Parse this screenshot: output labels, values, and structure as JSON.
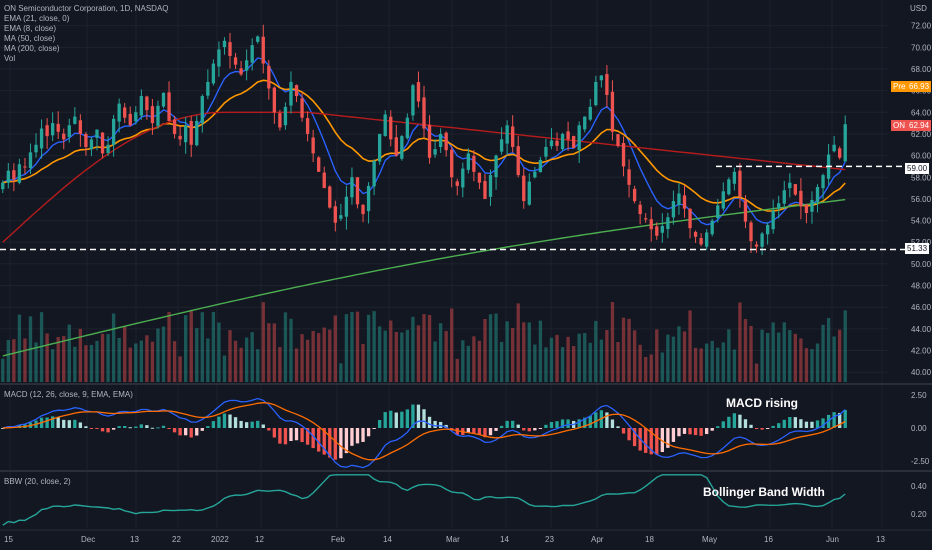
{
  "legend": {
    "title": "ON Semiconductor Corporation, 1D, NASDAQ",
    "ema21": "EMA (21, close, 0)",
    "ema8": "EMA (8, close)",
    "ma50": "MA (50, close)",
    "ma200": "MA (200, close)",
    "vol": "Vol"
  },
  "currency": "USD",
  "annotations": {
    "macd_note": "MACD rising",
    "bbw_note": "Bollinger Band Width"
  },
  "macd_label": "MACD (12, 26, close, 9, EMA, EMA)",
  "bbw_label": "BBW (20, close, 2)",
  "price_tags": {
    "pre": "Pre",
    "pre_value": "66.93",
    "on": "ON",
    "on_value": "62.94",
    "resistance": "59.00",
    "support": "51.33"
  },
  "colors": {
    "background": "#131722",
    "up": "#26a69a",
    "down": "#ef5350",
    "ema21": "#ff9800",
    "ema8": "#2962ff",
    "ma50": "#b71c1c",
    "ma200": "#4caf50",
    "macd_line": "#2962ff",
    "signal_line": "#ff6d00",
    "bbw_line": "#26a69a",
    "pre_tag": "#ff9800",
    "on_tag": "#ef5350"
  },
  "chart_data": {
    "type": "candlestick",
    "x_tick_labels": [
      "15",
      "Dec",
      "13",
      "22",
      "2022",
      "12",
      "Feb",
      "14",
      "Mar",
      "14",
      "23",
      "Apr",
      "18",
      "May",
      "16",
      "Jun",
      "13"
    ],
    "y_ticks": [
      "72.00",
      "70.00",
      "68.00",
      "66.00",
      "64.00",
      "62.00",
      "60.00",
      "58.00",
      "56.00",
      "54.00",
      "52.00",
      "50.00",
      "48.00",
      "46.00",
      "44.00",
      "42.00",
      "40.00"
    ],
    "ylim": [
      39,
      74
    ],
    "horizontal_lines": [
      59.0,
      51.33
    ],
    "close": [
      57.5,
      58.6,
      57.8,
      59.2,
      58.9,
      60.3,
      61.0,
      62.5,
      61.8,
      63.0,
      62.2,
      61.5,
      62.8,
      63.6,
      62.0,
      60.8,
      61.5,
      62.4,
      60.2,
      61.0,
      63.4,
      64.8,
      63.5,
      62.8,
      64.0,
      65.5,
      64.2,
      63.0,
      64.6,
      65.8,
      63.2,
      62.0,
      61.5,
      62.8,
      61.0,
      63.2,
      65.5,
      66.8,
      68.5,
      69.8,
      70.6,
      69.2,
      68.4,
      67.5,
      68.8,
      70.2,
      71.0,
      68.5,
      66.2,
      64.0,
      62.6,
      64.5,
      66.8,
      65.5,
      63.5,
      62.0,
      60.2,
      58.5,
      57.0,
      55.2,
      53.8,
      54.5,
      56.2,
      58.0,
      55.5,
      54.6,
      57.2,
      59.5,
      62.0,
      63.8,
      61.5,
      60.0,
      61.8,
      63.5,
      66.5,
      65.0,
      62.5,
      59.8,
      60.6,
      62.0,
      60.5,
      58.0,
      57.2,
      58.8,
      60.2,
      58.5,
      57.5,
      56.0,
      58.2,
      60.0,
      61.5,
      62.8,
      60.8,
      58.2,
      55.8,
      57.6,
      58.5,
      59.6,
      60.8,
      61.4,
      60.9,
      62.0,
      61.5,
      60.7,
      62.8,
      63.6,
      64.5,
      66.8,
      67.4,
      65.6,
      62.2,
      60.9,
      59.0,
      57.3,
      55.8,
      54.6,
      54.1,
      53.2,
      52.6,
      53.5,
      54.3,
      55.8,
      56.5,
      55.1,
      53.3,
      52.5,
      51.8,
      52.9,
      54.0,
      55.4,
      56.7,
      57.8,
      58.5,
      56.2,
      53.9,
      52.1,
      51.6,
      52.8,
      53.6,
      54.9,
      55.6,
      56.8,
      57.5,
      56.4,
      55.3,
      54.7,
      55.9,
      57.1,
      58.2,
      60.1,
      61.0,
      59.8,
      62.9
    ],
    "volume_ylim": [
      0,
      1
    ],
    "macd_ylim": [
      -3.2,
      3.2
    ],
    "macd_ticks": [
      "2.50",
      "0.00",
      "-2.50"
    ],
    "bbw_ylim": [
      0.1,
      0.5
    ],
    "bbw_ticks": [
      "0.40",
      "0.20"
    ]
  }
}
